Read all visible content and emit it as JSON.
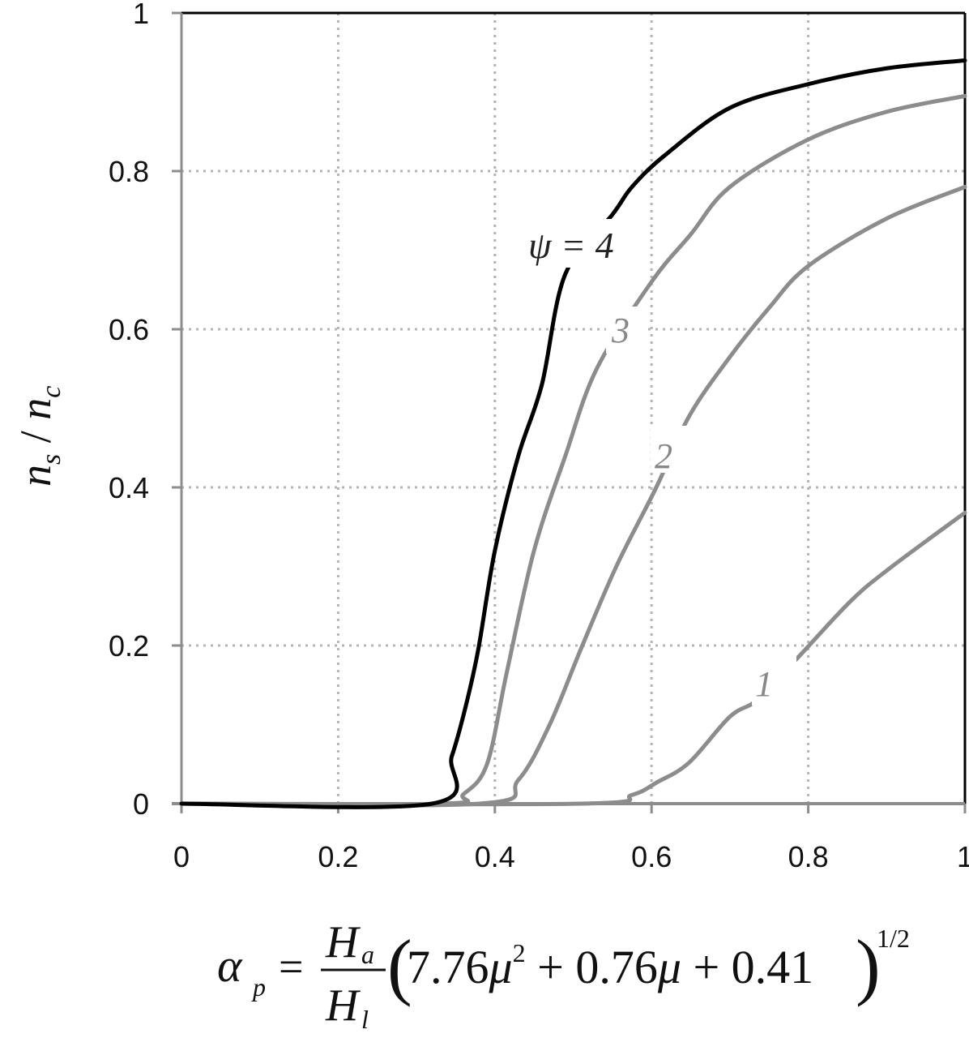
{
  "chart_data": {
    "type": "line",
    "title": "",
    "xlabel": "α_p = (H_a / H_l)(7.76μ² + 0.76μ + 0.41)^(1/2)",
    "ylabel": "n_s / n_c",
    "xlim": [
      0,
      1
    ],
    "ylim": [
      0,
      1
    ],
    "grid": true,
    "legend_position": "inline-labels",
    "x_ticks": [
      "0",
      "0.2",
      "0.4",
      "0.6",
      "0.8",
      "1"
    ],
    "y_ticks": [
      "0",
      "0.2",
      "0.4",
      "0.6",
      "0.8",
      "1"
    ],
    "series": [
      {
        "name": "ψ = 4",
        "label": "ψ = 4",
        "color": "#000000",
        "x": [
          0.0,
          0.32,
          0.345,
          0.363,
          0.379,
          0.4,
          0.43,
          0.46,
          0.49,
          0.55,
          0.575,
          0.617,
          0.7,
          0.8,
          0.9,
          1.0
        ],
        "y": [
          0.0,
          0.0,
          0.06,
          0.124,
          0.196,
          0.32,
          0.44,
          0.53,
          0.67,
          0.745,
          0.78,
          0.82,
          0.88,
          0.91,
          0.93,
          0.94
        ]
      },
      {
        "name": "ψ = 3",
        "label": "3",
        "color": "#8c8c8c",
        "x": [
          0.0,
          0.333,
          0.36,
          0.39,
          0.415,
          0.45,
          0.49,
          0.53,
          0.6,
          0.65,
          0.7,
          0.8,
          0.9,
          1.0
        ],
        "y": [
          0.0,
          0.0,
          0.012,
          0.05,
          0.165,
          0.32,
          0.44,
          0.55,
          0.66,
          0.72,
          0.78,
          0.84,
          0.875,
          0.895
        ]
      },
      {
        "name": "ψ = 2",
        "label": "2",
        "color": "#8c8c8c",
        "x": [
          0.0,
          0.38,
          0.43,
          0.47,
          0.51,
          0.555,
          0.606,
          0.648,
          0.7,
          0.75,
          0.8,
          0.9,
          1.0
        ],
        "y": [
          0.0,
          0.0,
          0.03,
          0.1,
          0.196,
          0.3,
          0.4,
          0.49,
          0.565,
          0.627,
          0.68,
          0.74,
          0.78
        ]
      },
      {
        "name": "ψ = 1",
        "label": "1",
        "color": "#8c8c8c",
        "x": [
          0.0,
          0.51,
          0.575,
          0.607,
          0.648,
          0.7,
          0.736,
          0.788,
          0.855,
          0.907,
          1.0
        ],
        "y": [
          0.0,
          0.0,
          0.011,
          0.027,
          0.052,
          0.11,
          0.132,
          0.186,
          0.257,
          0.3,
          0.368
        ]
      }
    ],
    "annotations": [
      {
        "text": "ψ = 4",
        "x": 0.5,
        "y": 0.72
      },
      {
        "text": "3",
        "x": 0.565,
        "y": 0.6
      },
      {
        "text": "2",
        "x": 0.62,
        "y": 0.45
      },
      {
        "text": "1",
        "x": 0.74,
        "y": 0.16
      }
    ]
  },
  "axes": {
    "y_label_main": "n",
    "y_label_sub1": "s",
    "y_label_slash": " / ",
    "y_label_main2": "n",
    "y_label_sub2": "c",
    "x_formula": {
      "lhs": "α",
      "lhs_sub": "p",
      "eq": "=",
      "num": "H",
      "num_sub": "a",
      "den": "H",
      "den_sub": "l",
      "paren_content_1": "7.76",
      "mu1": "μ",
      "sq": "2",
      "plus1": " + 0.76",
      "mu2": "μ",
      "plus2": " + 0.41",
      "exponent": "1/2"
    }
  },
  "labels": {
    "psi4": "ψ = 4",
    "psi3": "3",
    "psi2": "2",
    "psi1": "1"
  },
  "colors": {
    "psi4": "#000000",
    "others": "#8c8c8c",
    "grid": "#b4b4b4",
    "axis": "#8c8c8c",
    "frame": "#000000"
  }
}
